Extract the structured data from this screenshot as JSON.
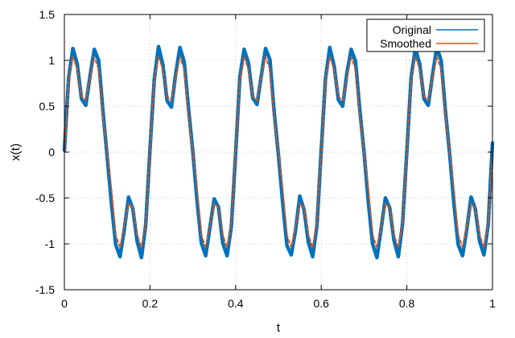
{
  "chart_data": {
    "type": "line",
    "title": "",
    "xlabel": "t",
    "ylabel": "x(t)",
    "xlim": [
      0,
      1
    ],
    "ylim": [
      -1.5,
      1.5
    ],
    "xticks": [
      0,
      0.2,
      0.4,
      0.6,
      0.8,
      1
    ],
    "xtick_labels": [
      "0",
      "0.2",
      "0.4",
      "0.6",
      "0.8",
      "1"
    ],
    "yticks": [
      -1.5,
      -1,
      -0.5,
      0,
      0.5,
      1,
      1.5
    ],
    "ytick_labels": [
      "-1.5",
      "-1",
      "-0.5",
      "0",
      "0.5",
      "1",
      "1.5"
    ],
    "grid": true,
    "legend_position": "top-right",
    "series": [
      {
        "name": "Original",
        "color": "#0072bd",
        "x": [
          0,
          0.01,
          0.02,
          0.03,
          0.04,
          0.05,
          0.06,
          0.07,
          0.08,
          0.09,
          0.1,
          0.11,
          0.12,
          0.13,
          0.14,
          0.15,
          0.16,
          0.17,
          0.18,
          0.19,
          0.2,
          0.21,
          0.22,
          0.23,
          0.24,
          0.25,
          0.26,
          0.27,
          0.28,
          0.29,
          0.3,
          0.31,
          0.32,
          0.33,
          0.34,
          0.35,
          0.36,
          0.37,
          0.38,
          0.39,
          0.4,
          0.41,
          0.42,
          0.43,
          0.44,
          0.45,
          0.46,
          0.47,
          0.48,
          0.49,
          0.5,
          0.51,
          0.52,
          0.53,
          0.54,
          0.55,
          0.56,
          0.57,
          0.58,
          0.59,
          0.6,
          0.61,
          0.62,
          0.63,
          0.64,
          0.65,
          0.66,
          0.67,
          0.68,
          0.69,
          0.7,
          0.71,
          0.72,
          0.73,
          0.74,
          0.75,
          0.76,
          0.77,
          0.78,
          0.79,
          0.8,
          0.81,
          0.82,
          0.83,
          0.84,
          0.85,
          0.86,
          0.87,
          0.88,
          0.89,
          0.9,
          0.91,
          0.92,
          0.93,
          0.94,
          0.95,
          0.96,
          0.97,
          0.98,
          0.99,
          1
        ],
        "y": [
          0.02,
          0.81,
          1.13,
          0.96,
          0.58,
          0.51,
          0.83,
          1.12,
          1.0,
          0.45,
          -0.05,
          -0.56,
          -1.01,
          -1.14,
          -0.84,
          -0.49,
          -0.62,
          -0.97,
          -1.15,
          -0.79,
          0.03,
          0.79,
          1.15,
          0.95,
          0.56,
          0.49,
          0.85,
          1.14,
          0.98,
          0.47,
          0.01,
          -0.53,
          -0.99,
          -1.13,
          -0.82,
          -0.51,
          -0.6,
          -0.99,
          -1.13,
          -0.81,
          -0.02,
          0.82,
          1.12,
          0.97,
          0.59,
          0.52,
          0.83,
          1.13,
          1.01,
          0.44,
          -0.03,
          -0.55,
          -1.02,
          -1.12,
          -0.85,
          -0.48,
          -0.63,
          -0.98,
          -1.14,
          -0.8,
          0.02,
          0.8,
          1.14,
          0.94,
          0.57,
          0.5,
          0.86,
          1.12,
          0.99,
          0.46,
          0.0,
          -0.54,
          -1.0,
          -1.15,
          -0.83,
          -0.5,
          -0.61,
          -0.96,
          -1.14,
          -0.78,
          0.01,
          0.81,
          1.13,
          0.96,
          0.58,
          0.51,
          0.84,
          1.14,
          1.0,
          0.45,
          -0.02,
          -0.56,
          -1.01,
          -1.13,
          -0.84,
          -0.49,
          -0.62,
          -0.97,
          -1.12,
          -0.79,
          0.1
        ]
      },
      {
        "name": "Smoothed",
        "color": "#d95319",
        "x": [
          0,
          0.01,
          0.02,
          0.03,
          0.04,
          0.05,
          0.06,
          0.07,
          0.08,
          0.09,
          0.1,
          0.11,
          0.12,
          0.13,
          0.14,
          0.15,
          0.16,
          0.17,
          0.18,
          0.19,
          0.2,
          0.21,
          0.22,
          0.23,
          0.24,
          0.25,
          0.26,
          0.27,
          0.28,
          0.29,
          0.3,
          0.31,
          0.32,
          0.33,
          0.34,
          0.35,
          0.36,
          0.37,
          0.38,
          0.39,
          0.4,
          0.41,
          0.42,
          0.43,
          0.44,
          0.45,
          0.46,
          0.47,
          0.48,
          0.49,
          0.5,
          0.51,
          0.52,
          0.53,
          0.54,
          0.55,
          0.56,
          0.57,
          0.58,
          0.59,
          0.6,
          0.61,
          0.62,
          0.63,
          0.64,
          0.65,
          0.66,
          0.67,
          0.68,
          0.69,
          0.7,
          0.71,
          0.72,
          0.73,
          0.74,
          0.75,
          0.76,
          0.77,
          0.78,
          0.79,
          0.8,
          0.81,
          0.82,
          0.83,
          0.84,
          0.85,
          0.86,
          0.87,
          0.88,
          0.89,
          0.9,
          0.91,
          0.92,
          0.93,
          0.94,
          0.95,
          0.96,
          0.97,
          0.98,
          0.99,
          1
        ],
        "y": [
          0.0,
          0.78,
          1.04,
          0.9,
          0.61,
          0.56,
          0.81,
          1.04,
          0.9,
          0.4,
          0.0,
          -0.4,
          -0.9,
          -1.04,
          -0.81,
          -0.56,
          -0.61,
          -0.9,
          -1.04,
          -0.78,
          0.0,
          0.78,
          1.04,
          0.9,
          0.61,
          0.56,
          0.81,
          1.04,
          0.9,
          0.4,
          0.0,
          -0.4,
          -0.9,
          -1.04,
          -0.81,
          -0.56,
          -0.61,
          -0.9,
          -1.04,
          -0.78,
          0.0,
          0.78,
          1.04,
          0.9,
          0.61,
          0.56,
          0.81,
          1.04,
          0.9,
          0.4,
          0.0,
          -0.4,
          -0.9,
          -1.04,
          -0.81,
          -0.56,
          -0.61,
          -0.9,
          -1.04,
          -0.78,
          0.0,
          0.78,
          1.04,
          0.9,
          0.61,
          0.56,
          0.81,
          1.04,
          0.9,
          0.4,
          0.0,
          -0.4,
          -0.9,
          -1.04,
          -0.81,
          -0.56,
          -0.61,
          -0.9,
          -1.04,
          -0.78,
          0.0,
          0.78,
          1.04,
          0.9,
          0.61,
          0.56,
          0.81,
          1.04,
          0.9,
          0.4,
          0.0,
          -0.4,
          -0.9,
          -1.04,
          -0.81,
          -0.56,
          -0.61,
          -0.9,
          -1.04,
          -0.78,
          0.0
        ]
      }
    ]
  }
}
